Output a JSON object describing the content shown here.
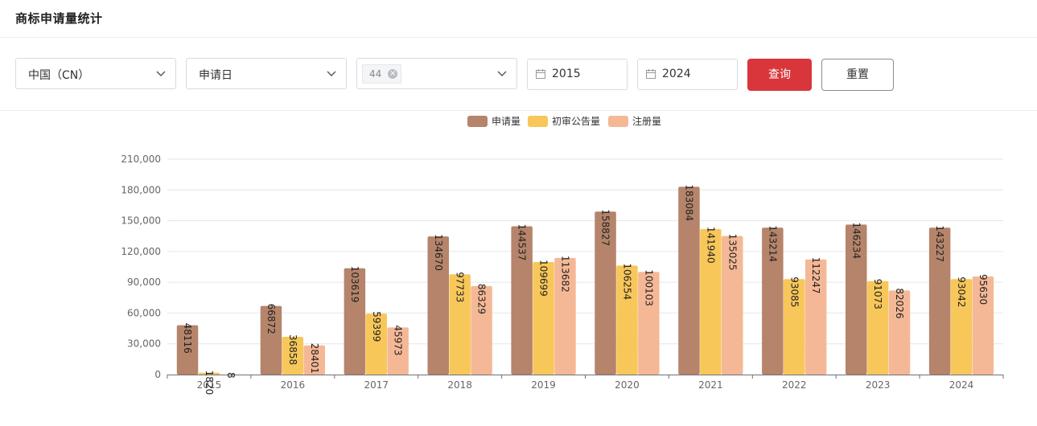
{
  "page": {
    "title": "商标申请量统计"
  },
  "filters": {
    "region": "中国（CN）",
    "date_type": "申请日",
    "class_tag": "44",
    "class_tag_remove": "×",
    "start_year": "2015",
    "end_year": "2024",
    "query_label": "查询",
    "reset_label": "重置"
  },
  "colors": {
    "applications": "#b5846a",
    "preliminary": "#f8c75a",
    "registrations": "#f5b896"
  },
  "chart_data": {
    "type": "bar",
    "categories": [
      "2015",
      "2016",
      "2017",
      "2018",
      "2019",
      "2020",
      "2021",
      "2022",
      "2023",
      "2024"
    ],
    "series": [
      {
        "name": "申请量",
        "values": [
          48116,
          66872,
          103619,
          134670,
          144537,
          158827,
          183084,
          143214,
          146234,
          143227
        ]
      },
      {
        "name": "初审公告量",
        "values": [
          1820,
          36858,
          59399,
          97733,
          109699,
          106254,
          141940,
          93085,
          91073,
          93042
        ]
      },
      {
        "name": "注册量",
        "values": [
          8,
          28401,
          45973,
          86329,
          113682,
          100103,
          135025,
          112247,
          82026,
          95630
        ]
      }
    ],
    "ylim": [
      0,
      210000
    ],
    "yticks": [
      "0",
      "30,000",
      "60,000",
      "90,000",
      "120,000",
      "150,000",
      "180,000",
      "210,000"
    ],
    "ytick_values": [
      0,
      30000,
      60000,
      90000,
      120000,
      150000,
      180000,
      210000
    ],
    "legend": "top-center",
    "grid": true
  }
}
